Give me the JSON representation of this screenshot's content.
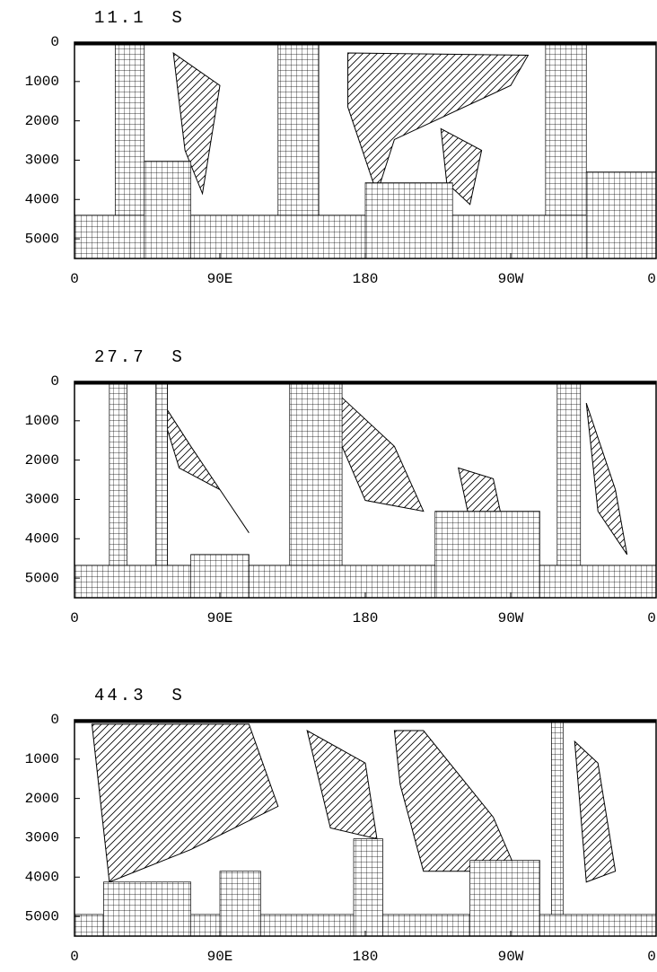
{
  "chart_data": [
    {
      "type": "contour",
      "title": "11.1  S",
      "invert_y": true,
      "xlim": [
        0,
        360
      ],
      "xticks": [
        0,
        {
          "value": 90,
          "label": "90E"
        },
        180,
        {
          "value": 270,
          "label": "90W"
        },
        {
          "value": 360,
          "label": "0"
        }
      ],
      "ylim": [
        0,
        5500
      ],
      "yticks": [
        0,
        1000,
        2000,
        3000,
        4000,
        5000
      ]
    },
    {
      "type": "contour",
      "title": "27.7  S",
      "invert_y": true,
      "xlim": [
        0,
        360
      ],
      "xticks": [
        0,
        {
          "value": 90,
          "label": "90E"
        },
        180,
        {
          "value": 270,
          "label": "90W"
        },
        {
          "value": 360,
          "label": "0"
        }
      ],
      "ylim": [
        0,
        5500
      ],
      "yticks": [
        0,
        1000,
        2000,
        3000,
        4000,
        5000
      ]
    },
    {
      "type": "contour",
      "title": "44.3  S",
      "invert_y": true,
      "xlim": [
        0,
        360
      ],
      "xticks": [
        0,
        {
          "value": 90,
          "label": "90E"
        },
        180,
        {
          "value": 270,
          "label": "90W"
        },
        {
          "value": 360,
          "label": "0"
        }
      ],
      "ylim": [
        0,
        5500
      ],
      "yticks": [
        0,
        1000,
        2000,
        3000,
        4000,
        5000
      ]
    }
  ]
}
